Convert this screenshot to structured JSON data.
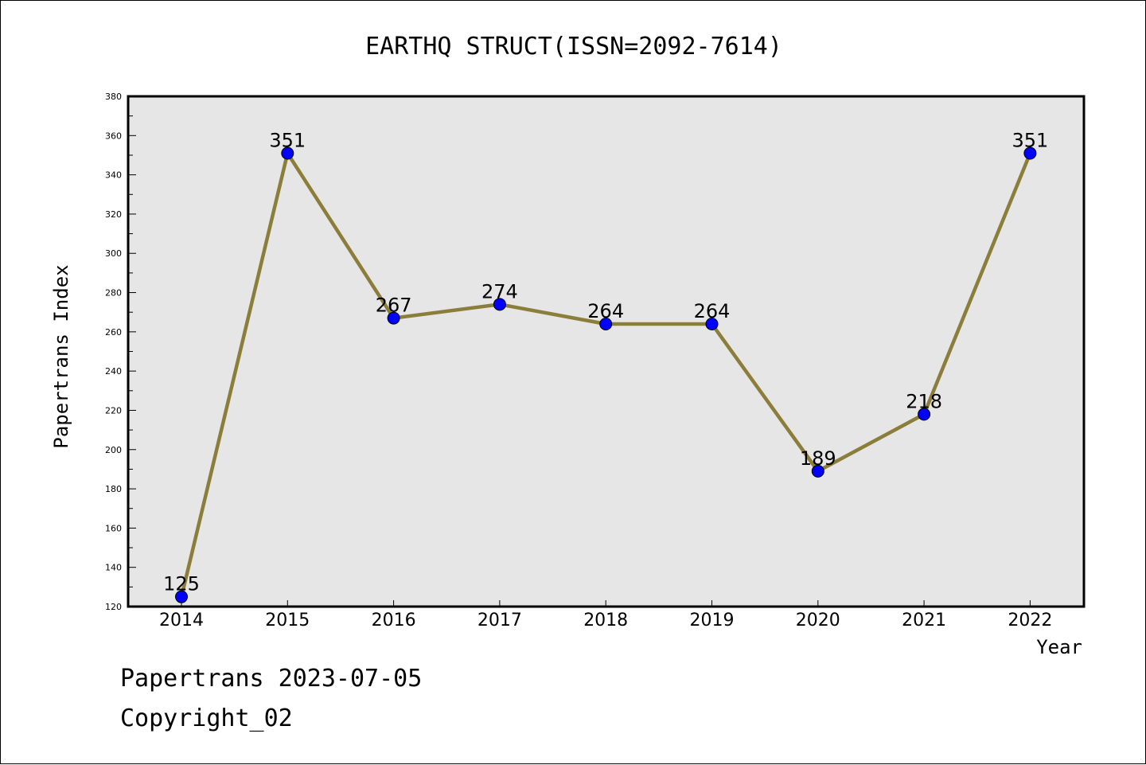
{
  "chart_data": {
    "type": "line",
    "title": "EARTHQ STRUCT(ISSN=2092-7614)",
    "xlabel": "Year",
    "ylabel": "Papertrans Index",
    "categories": [
      "2014",
      "2015",
      "2016",
      "2017",
      "2018",
      "2019",
      "2020",
      "2021",
      "2022"
    ],
    "values": [
      125,
      351,
      267,
      274,
      264,
      264,
      189,
      218,
      351
    ],
    "data_labels": [
      "125",
      "351",
      "267",
      "274",
      "264",
      "264",
      "189",
      "218",
      "351"
    ],
    "ylim": [
      120,
      380
    ],
    "yticks": [
      "120",
      "140",
      "160",
      "180",
      "200",
      "220",
      "240",
      "260",
      "280",
      "300",
      "320",
      "340",
      "360",
      "380"
    ],
    "grid": false,
    "colors": {
      "line": "#8b7d3a",
      "marker": "#0000ff",
      "plot_background": "#e6e6e6"
    }
  },
  "footer": {
    "line1": "Papertrans 2023-07-05",
    "line2": "Copyright_02"
  }
}
